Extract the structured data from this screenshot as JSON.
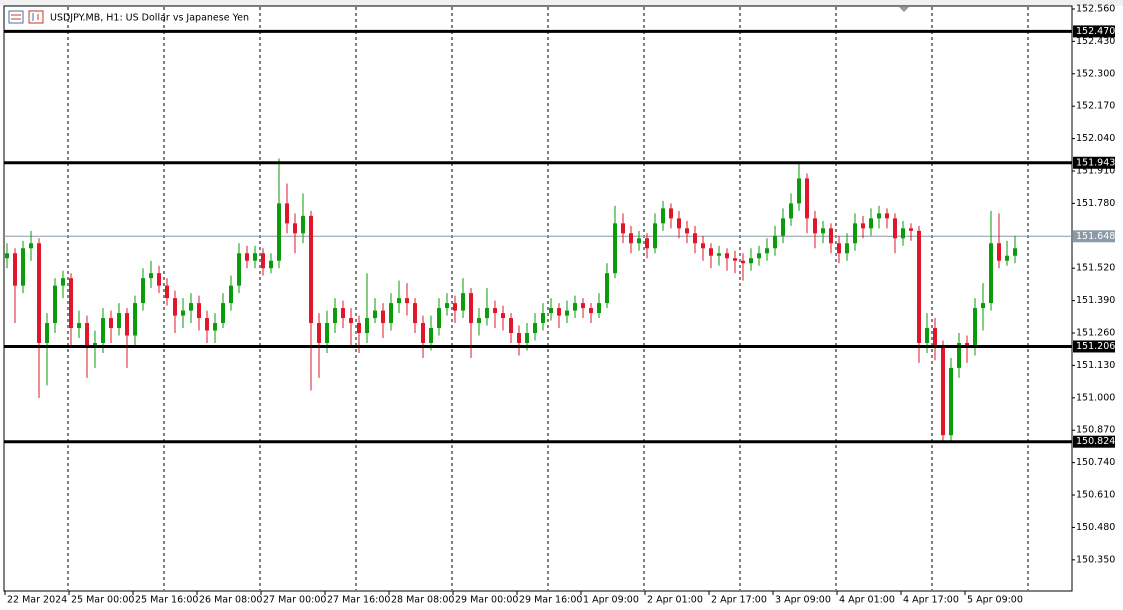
{
  "chart_data": {
    "type": "candlestick",
    "title": "USDJPY.MB, H1:  US Dollar vs Japanese Yen",
    "up_color": "#0a9c0a",
    "down_color": "#e0162b",
    "level_color": "#000000",
    "price_line_color": "#8a9aa6",
    "grid": true,
    "ylim": [
      150.229,
      152.596
    ],
    "yticks": [
      {
        "value": 152.56,
        "label": "152.560"
      },
      {
        "value": 152.43,
        "label": "152.430"
      },
      {
        "value": 152.3,
        "label": "152.300"
      },
      {
        "value": 152.17,
        "label": "152.170"
      },
      {
        "value": 152.04,
        "label": "152.040"
      },
      {
        "value": 151.91,
        "label": "151.910"
      },
      {
        "value": 151.78,
        "label": "151.780"
      },
      {
        "value": 151.52,
        "label": "151.520"
      },
      {
        "value": 151.39,
        "label": "151.390"
      },
      {
        "value": 151.26,
        "label": "151.260"
      },
      {
        "value": 151.13,
        "label": "151.130"
      },
      {
        "value": 151.0,
        "label": "151.000"
      },
      {
        "value": 150.87,
        "label": "150.870"
      },
      {
        "value": 150.74,
        "label": "150.740"
      },
      {
        "value": 150.61,
        "label": "150.610"
      },
      {
        "value": 150.48,
        "label": "150.480"
      },
      {
        "value": 150.35,
        "label": "150.350"
      }
    ],
    "xticks": [
      {
        "value": 0,
        "label": "22 Mar 2024"
      },
      {
        "value": 8,
        "label": "25 Mar 00:00"
      },
      {
        "value": 16,
        "label": "25 Mar 16:00"
      },
      {
        "value": 24,
        "label": "26 Mar 08:00"
      },
      {
        "value": 32,
        "label": "27 Mar 00:00"
      },
      {
        "value": 40,
        "label": "27 Mar 16:00"
      },
      {
        "value": 48,
        "label": "28 Mar 08:00"
      },
      {
        "value": 56,
        "label": "29 Mar 00:00"
      },
      {
        "value": 64,
        "label": "29 Mar 16:00"
      },
      {
        "value": 72,
        "label": "1 Apr 09:00"
      },
      {
        "value": 80,
        "label": "2 Apr 01:00"
      },
      {
        "value": 88,
        "label": "2 Apr 17:00"
      },
      {
        "value": 96,
        "label": "3 Apr 09:00"
      },
      {
        "value": 104,
        "label": "4 Apr 01:00"
      },
      {
        "value": 112,
        "label": "4 Apr 17:00"
      },
      {
        "value": 120,
        "label": "5 Apr 09:00"
      }
    ],
    "levels": [
      {
        "value": 152.47,
        "label": "152.470"
      },
      {
        "value": 151.943,
        "label": "151.943"
      },
      {
        "value": 151.206,
        "label": "151.206"
      },
      {
        "value": 150.824,
        "label": "150.824"
      }
    ],
    "price_line": {
      "value": 151.648,
      "label": "151.648"
    },
    "ohlc": [
      [
        151.56,
        151.62,
        151.52,
        151.58
      ],
      [
        151.58,
        151.6,
        151.3,
        151.45
      ],
      [
        151.45,
        151.63,
        151.42,
        151.6
      ],
      [
        151.6,
        151.67,
        151.55,
        151.62
      ],
      [
        151.62,
        151.64,
        151.0,
        151.22
      ],
      [
        151.22,
        151.34,
        151.05,
        151.3
      ],
      [
        151.3,
        151.48,
        151.26,
        151.45
      ],
      [
        151.45,
        151.51,
        151.4,
        151.48
      ],
      [
        151.48,
        151.5,
        151.2,
        151.28
      ],
      [
        151.28,
        151.35,
        151.24,
        151.3
      ],
      [
        151.3,
        151.33,
        151.08,
        151.2
      ],
      [
        151.2,
        151.27,
        151.12,
        151.22
      ],
      [
        151.22,
        151.36,
        151.18,
        151.32
      ],
      [
        151.32,
        151.35,
        151.22,
        151.28
      ],
      [
        151.28,
        151.38,
        151.25,
        151.34
      ],
      [
        151.34,
        151.36,
        151.12,
        151.25
      ],
      [
        151.25,
        151.41,
        151.2,
        151.38
      ],
      [
        151.38,
        151.52,
        151.35,
        151.48
      ],
      [
        151.48,
        151.55,
        151.44,
        151.5
      ],
      [
        151.5,
        151.53,
        151.42,
        151.45
      ],
      [
        151.45,
        151.48,
        151.37,
        151.4
      ],
      [
        151.4,
        151.43,
        151.26,
        151.33
      ],
      [
        151.33,
        151.4,
        151.28,
        151.35
      ],
      [
        151.35,
        151.42,
        151.3,
        151.38
      ],
      [
        151.38,
        151.41,
        151.27,
        151.32
      ],
      [
        151.32,
        151.35,
        151.22,
        151.27
      ],
      [
        151.27,
        151.34,
        151.22,
        151.3
      ],
      [
        151.3,
        151.42,
        151.28,
        151.38
      ],
      [
        151.38,
        151.49,
        151.35,
        151.45
      ],
      [
        151.45,
        151.62,
        151.42,
        151.58
      ],
      [
        151.58,
        151.61,
        151.52,
        151.55
      ],
      [
        151.55,
        151.61,
        151.52,
        151.58
      ],
      [
        151.58,
        151.6,
        151.49,
        151.52
      ],
      [
        151.52,
        151.58,
        151.5,
        151.55
      ],
      [
        151.55,
        151.96,
        151.52,
        151.78
      ],
      [
        151.78,
        151.86,
        151.66,
        151.7
      ],
      [
        151.7,
        151.74,
        151.58,
        151.66
      ],
      [
        151.66,
        151.82,
        151.62,
        151.73
      ],
      [
        151.73,
        151.75,
        151.03,
        151.3
      ],
      [
        151.3,
        151.34,
        151.08,
        151.22
      ],
      [
        151.22,
        151.35,
        151.18,
        151.3
      ],
      [
        151.3,
        151.4,
        151.26,
        151.36
      ],
      [
        151.36,
        151.39,
        151.28,
        151.32
      ],
      [
        151.32,
        151.36,
        151.2,
        151.3
      ],
      [
        151.3,
        151.33,
        151.18,
        151.26
      ],
      [
        151.26,
        151.5,
        151.22,
        151.32
      ],
      [
        151.32,
        151.4,
        151.3,
        151.35
      ],
      [
        151.35,
        151.38,
        151.24,
        151.3
      ],
      [
        151.3,
        151.42,
        151.27,
        151.38
      ],
      [
        151.38,
        151.47,
        151.34,
        151.4
      ],
      [
        151.4,
        151.46,
        151.33,
        151.38
      ],
      [
        151.38,
        151.4,
        151.26,
        151.3
      ],
      [
        151.3,
        151.33,
        151.16,
        151.22
      ],
      [
        151.22,
        151.33,
        151.19,
        151.28
      ],
      [
        151.28,
        151.4,
        151.25,
        151.36
      ],
      [
        151.36,
        151.42,
        151.33,
        151.38
      ],
      [
        151.38,
        151.41,
        151.3,
        151.35
      ],
      [
        151.35,
        151.48,
        151.32,
        151.42
      ],
      [
        151.42,
        151.44,
        151.16,
        151.3
      ],
      [
        151.3,
        151.36,
        151.25,
        151.32
      ],
      [
        151.32,
        151.44,
        151.29,
        151.36
      ],
      [
        151.36,
        151.39,
        151.28,
        151.34
      ],
      [
        151.34,
        151.37,
        151.27,
        151.32
      ],
      [
        151.32,
        151.34,
        151.22,
        151.26
      ],
      [
        151.26,
        151.29,
        151.17,
        151.22
      ],
      [
        151.22,
        151.3,
        151.19,
        151.26
      ],
      [
        151.26,
        151.34,
        151.23,
        151.3
      ],
      [
        151.3,
        151.38,
        151.27,
        151.34
      ],
      [
        151.34,
        151.4,
        151.31,
        151.36
      ],
      [
        151.36,
        151.38,
        151.28,
        151.33
      ],
      [
        151.33,
        151.39,
        151.3,
        151.35
      ],
      [
        151.35,
        151.41,
        151.32,
        151.38
      ],
      [
        151.38,
        151.4,
        151.32,
        151.36
      ],
      [
        151.36,
        151.38,
        151.3,
        151.34
      ],
      [
        151.34,
        151.42,
        151.32,
        151.38
      ],
      [
        151.38,
        151.54,
        151.36,
        151.5
      ],
      [
        151.5,
        151.77,
        151.48,
        151.7
      ],
      [
        151.7,
        151.74,
        151.62,
        151.66
      ],
      [
        151.66,
        151.69,
        151.58,
        151.62
      ],
      [
        151.62,
        151.67,
        151.59,
        151.64
      ],
      [
        151.64,
        151.66,
        151.56,
        151.6
      ],
      [
        151.6,
        151.74,
        151.58,
        151.7
      ],
      [
        151.7,
        151.79,
        151.67,
        151.76
      ],
      [
        151.76,
        151.78,
        151.68,
        151.72
      ],
      [
        151.72,
        151.75,
        151.64,
        151.68
      ],
      [
        151.68,
        151.71,
        151.62,
        151.66
      ],
      [
        151.66,
        151.69,
        151.58,
        151.62
      ],
      [
        151.62,
        151.65,
        151.55,
        151.6
      ],
      [
        151.6,
        151.62,
        151.52,
        151.57
      ],
      [
        151.57,
        151.61,
        151.53,
        151.58
      ],
      [
        151.58,
        151.6,
        151.51,
        151.56
      ],
      [
        151.56,
        151.59,
        151.5,
        151.55
      ],
      [
        151.55,
        151.58,
        151.47,
        151.54
      ],
      [
        151.54,
        151.6,
        151.51,
        151.56
      ],
      [
        151.56,
        151.61,
        151.53,
        151.58
      ],
      [
        151.58,
        151.64,
        151.55,
        151.6
      ],
      [
        151.6,
        151.69,
        151.57,
        151.65
      ],
      [
        151.65,
        151.76,
        151.62,
        151.72
      ],
      [
        151.72,
        151.82,
        151.69,
        151.78
      ],
      [
        151.78,
        151.94,
        151.75,
        151.88
      ],
      [
        151.88,
        151.9,
        151.66,
        151.72
      ],
      [
        151.72,
        151.75,
        151.6,
        151.66
      ],
      [
        151.66,
        151.71,
        151.62,
        151.68
      ],
      [
        151.68,
        151.7,
        151.58,
        151.62
      ],
      [
        151.62,
        151.65,
        151.54,
        151.58
      ],
      [
        151.58,
        151.66,
        151.55,
        151.62
      ],
      [
        151.62,
        151.74,
        151.59,
        151.7
      ],
      [
        151.7,
        151.73,
        151.64,
        151.68
      ],
      [
        151.68,
        151.76,
        151.65,
        151.72
      ],
      [
        151.72,
        151.77,
        151.68,
        151.74
      ],
      [
        151.74,
        151.76,
        151.68,
        151.72
      ],
      [
        151.72,
        151.74,
        151.58,
        151.64
      ],
      [
        151.64,
        151.71,
        151.61,
        151.68
      ],
      [
        151.68,
        151.7,
        151.63,
        151.67
      ],
      [
        151.67,
        151.69,
        151.14,
        151.22
      ],
      [
        151.22,
        151.34,
        151.18,
        151.28
      ],
      [
        151.28,
        151.32,
        151.15,
        151.2
      ],
      [
        151.2,
        151.23,
        150.82,
        150.85
      ],
      [
        150.85,
        151.16,
        150.82,
        151.12
      ],
      [
        151.12,
        151.26,
        151.08,
        151.22
      ],
      [
        151.22,
        151.25,
        151.14,
        151.2
      ],
      [
        151.2,
        151.4,
        151.17,
        151.36
      ],
      [
        151.36,
        151.46,
        151.27,
        151.38
      ],
      [
        151.38,
        151.75,
        151.35,
        151.62
      ],
      [
        151.62,
        151.74,
        151.52,
        151.55
      ],
      [
        151.55,
        151.63,
        151.53,
        151.57
      ],
      [
        151.57,
        151.65,
        151.54,
        151.6
      ]
    ]
  }
}
